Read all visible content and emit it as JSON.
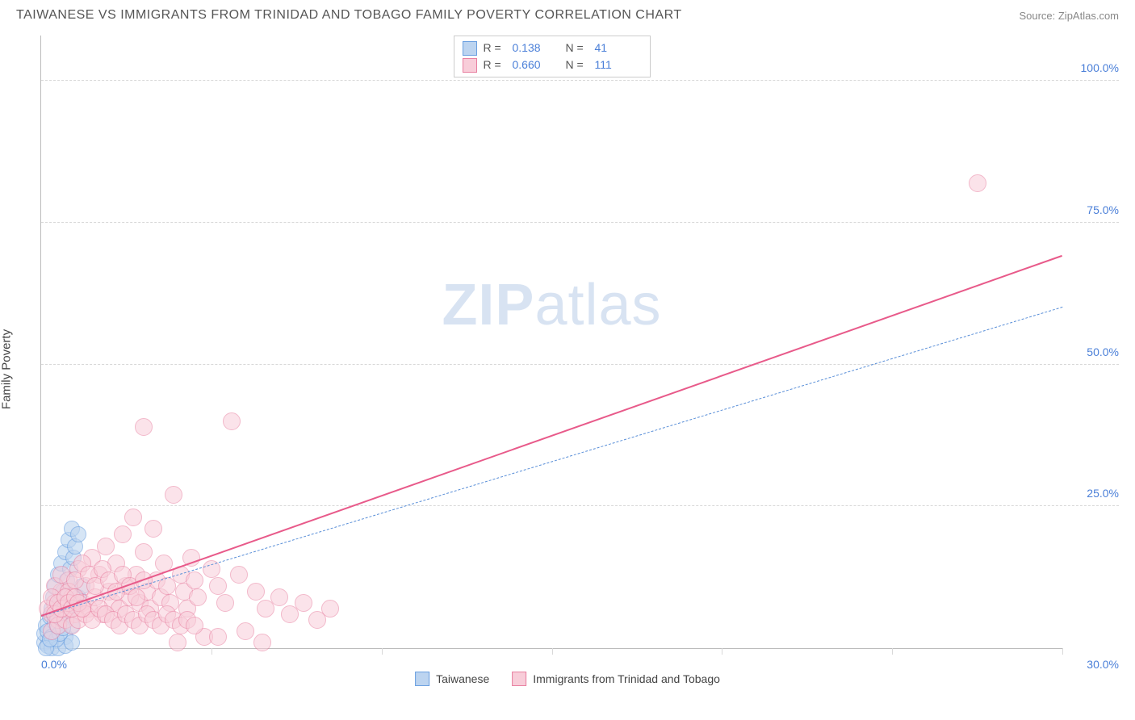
{
  "header": {
    "title": "TAIWANESE VS IMMIGRANTS FROM TRINIDAD AND TOBAGO FAMILY POVERTY CORRELATION CHART",
    "source": "Source: ZipAtlas.com"
  },
  "chart": {
    "type": "scatter",
    "ylabel": "Family Poverty",
    "watermark_a": "ZIP",
    "watermark_b": "atlas",
    "xlim": [
      0,
      30
    ],
    "ylim": [
      0,
      108
    ],
    "xticks": [
      0,
      5,
      10,
      15,
      20,
      25,
      30
    ],
    "xtick_labels_shown": {
      "0": "0.0%",
      "30": "30.0%"
    },
    "yticks": [
      25,
      50,
      75,
      100
    ],
    "ytick_labels": {
      "25": "25.0%",
      "50": "50.0%",
      "75": "75.0%",
      "100": "100.0%"
    },
    "background_color": "#ffffff",
    "grid_color": "#d8d8d8",
    "axis_color": "#bbbbbb",
    "tick_label_color": "#4a7fd8",
    "series": [
      {
        "name": "Taiwanese",
        "marker_fill": "#bcd4f0",
        "marker_stroke": "#6a9fe0",
        "marker_opacity": 0.6,
        "marker_radius": 10,
        "trend_color": "#5a8fd8",
        "trend_style": "dashed",
        "trend": {
          "x1": 0,
          "y1": 5.5,
          "x2": 30,
          "y2": 60
        },
        "R": "0.138",
        "N": "41",
        "points": [
          [
            0.1,
            1
          ],
          [
            0.1,
            2.5
          ],
          [
            0.15,
            4
          ],
          [
            0.2,
            0.5
          ],
          [
            0.2,
            3
          ],
          [
            0.25,
            5.5
          ],
          [
            0.3,
            2
          ],
          [
            0.3,
            7
          ],
          [
            0.35,
            9
          ],
          [
            0.4,
            4.5
          ],
          [
            0.4,
            11
          ],
          [
            0.45,
            6
          ],
          [
            0.5,
            3.5
          ],
          [
            0.5,
            13
          ],
          [
            0.55,
            8
          ],
          [
            0.6,
            5
          ],
          [
            0.6,
            15
          ],
          [
            0.65,
            10
          ],
          [
            0.7,
            2
          ],
          [
            0.7,
            17
          ],
          [
            0.75,
            12
          ],
          [
            0.8,
            6.5
          ],
          [
            0.8,
            19
          ],
          [
            0.85,
            14
          ],
          [
            0.9,
            4
          ],
          [
            0.9,
            21
          ],
          [
            0.95,
            16
          ],
          [
            1.0,
            7.5
          ],
          [
            1.0,
            18
          ],
          [
            1.1,
            9
          ],
          [
            1.1,
            20
          ],
          [
            1.2,
            11
          ],
          [
            0.3,
            0
          ],
          [
            0.5,
            0
          ],
          [
            0.7,
            0.5
          ],
          [
            0.9,
            1
          ],
          [
            0.15,
            0
          ],
          [
            0.45,
            1.5
          ],
          [
            0.55,
            2.5
          ],
          [
            0.65,
            3.5
          ],
          [
            0.25,
            1.5
          ]
        ]
      },
      {
        "name": "Immigrants from Trinidad and Tobago",
        "marker_fill": "#f8cdd9",
        "marker_stroke": "#e87fa0",
        "marker_opacity": 0.55,
        "marker_radius": 11,
        "trend_color": "#e85a8a",
        "trend_style": "solid",
        "trend": {
          "x1": 0,
          "y1": 5.5,
          "x2": 30,
          "y2": 69
        },
        "R": "0.660",
        "N": "111",
        "points": [
          [
            0.3,
            6
          ],
          [
            0.4,
            8
          ],
          [
            0.5,
            5
          ],
          [
            0.6,
            10
          ],
          [
            0.7,
            7
          ],
          [
            0.8,
            12
          ],
          [
            0.9,
            9
          ],
          [
            1.0,
            6
          ],
          [
            1.1,
            14
          ],
          [
            1.2,
            8
          ],
          [
            1.3,
            11
          ],
          [
            1.4,
            7
          ],
          [
            1.5,
            16
          ],
          [
            1.6,
            9
          ],
          [
            1.7,
            13
          ],
          [
            1.8,
            6
          ],
          [
            1.9,
            18
          ],
          [
            2.0,
            10
          ],
          [
            2.1,
            8
          ],
          [
            2.2,
            15
          ],
          [
            2.3,
            7
          ],
          [
            2.4,
            20
          ],
          [
            2.5,
            11
          ],
          [
            2.6,
            9
          ],
          [
            2.7,
            23
          ],
          [
            2.8,
            13
          ],
          [
            2.9,
            8
          ],
          [
            3.0,
            17
          ],
          [
            3.1,
            10
          ],
          [
            3.2,
            7
          ],
          [
            3.3,
            21
          ],
          [
            3.4,
            12
          ],
          [
            3.5,
            9
          ],
          [
            3.6,
            15
          ],
          [
            3.7,
            11
          ],
          [
            3.8,
            8
          ],
          [
            3.9,
            27
          ],
          [
            4.0,
            1
          ],
          [
            4.1,
            13
          ],
          [
            4.2,
            10
          ],
          [
            4.3,
            7
          ],
          [
            4.4,
            16
          ],
          [
            4.5,
            12
          ],
          [
            4.6,
            9
          ],
          [
            4.8,
            2
          ],
          [
            5.0,
            14
          ],
          [
            5.2,
            11
          ],
          [
            5.4,
            8
          ],
          [
            5.6,
            40
          ],
          [
            5.8,
            13
          ],
          [
            6.0,
            3
          ],
          [
            6.3,
            10
          ],
          [
            6.6,
            7
          ],
          [
            7.0,
            9
          ],
          [
            7.3,
            6
          ],
          [
            7.7,
            8
          ],
          [
            8.1,
            5
          ],
          [
            8.5,
            7
          ],
          [
            27.5,
            82
          ],
          [
            3.0,
            39
          ],
          [
            0.3,
            3
          ],
          [
            0.5,
            4
          ],
          [
            0.7,
            5
          ],
          [
            0.9,
            4
          ],
          [
            1.1,
            5
          ],
          [
            1.3,
            6
          ],
          [
            1.5,
            5
          ],
          [
            1.7,
            7
          ],
          [
            1.9,
            6
          ],
          [
            2.1,
            5
          ],
          [
            2.3,
            4
          ],
          [
            2.5,
            6
          ],
          [
            2.7,
            5
          ],
          [
            2.9,
            4
          ],
          [
            3.1,
            6
          ],
          [
            3.3,
            5
          ],
          [
            3.5,
            4
          ],
          [
            3.7,
            6
          ],
          [
            3.9,
            5
          ],
          [
            4.1,
            4
          ],
          [
            4.3,
            5
          ],
          [
            4.5,
            4
          ],
          [
            0.4,
            11
          ],
          [
            0.6,
            13
          ],
          [
            0.8,
            10
          ],
          [
            1.0,
            12
          ],
          [
            1.2,
            15
          ],
          [
            1.4,
            13
          ],
          [
            1.6,
            11
          ],
          [
            1.8,
            14
          ],
          [
            2.0,
            12
          ],
          [
            2.2,
            10
          ],
          [
            2.4,
            13
          ],
          [
            2.6,
            11
          ],
          [
            2.8,
            9
          ],
          [
            3.0,
            12
          ],
          [
            0.2,
            7
          ],
          [
            0.3,
            9
          ],
          [
            0.4,
            6
          ],
          [
            0.5,
            8
          ],
          [
            0.6,
            7
          ],
          [
            0.7,
            9
          ],
          [
            0.8,
            8
          ],
          [
            0.9,
            7
          ],
          [
            1.0,
            9
          ],
          [
            1.1,
            8
          ],
          [
            1.2,
            7
          ],
          [
            5.2,
            2
          ],
          [
            6.5,
            1
          ]
        ]
      }
    ],
    "legend_top": {
      "R_label": "R  =",
      "N_label": "N  ="
    },
    "legend_bottom": {
      "items": [
        "Taiwanese",
        "Immigrants from Trinidad and Tobago"
      ]
    }
  }
}
